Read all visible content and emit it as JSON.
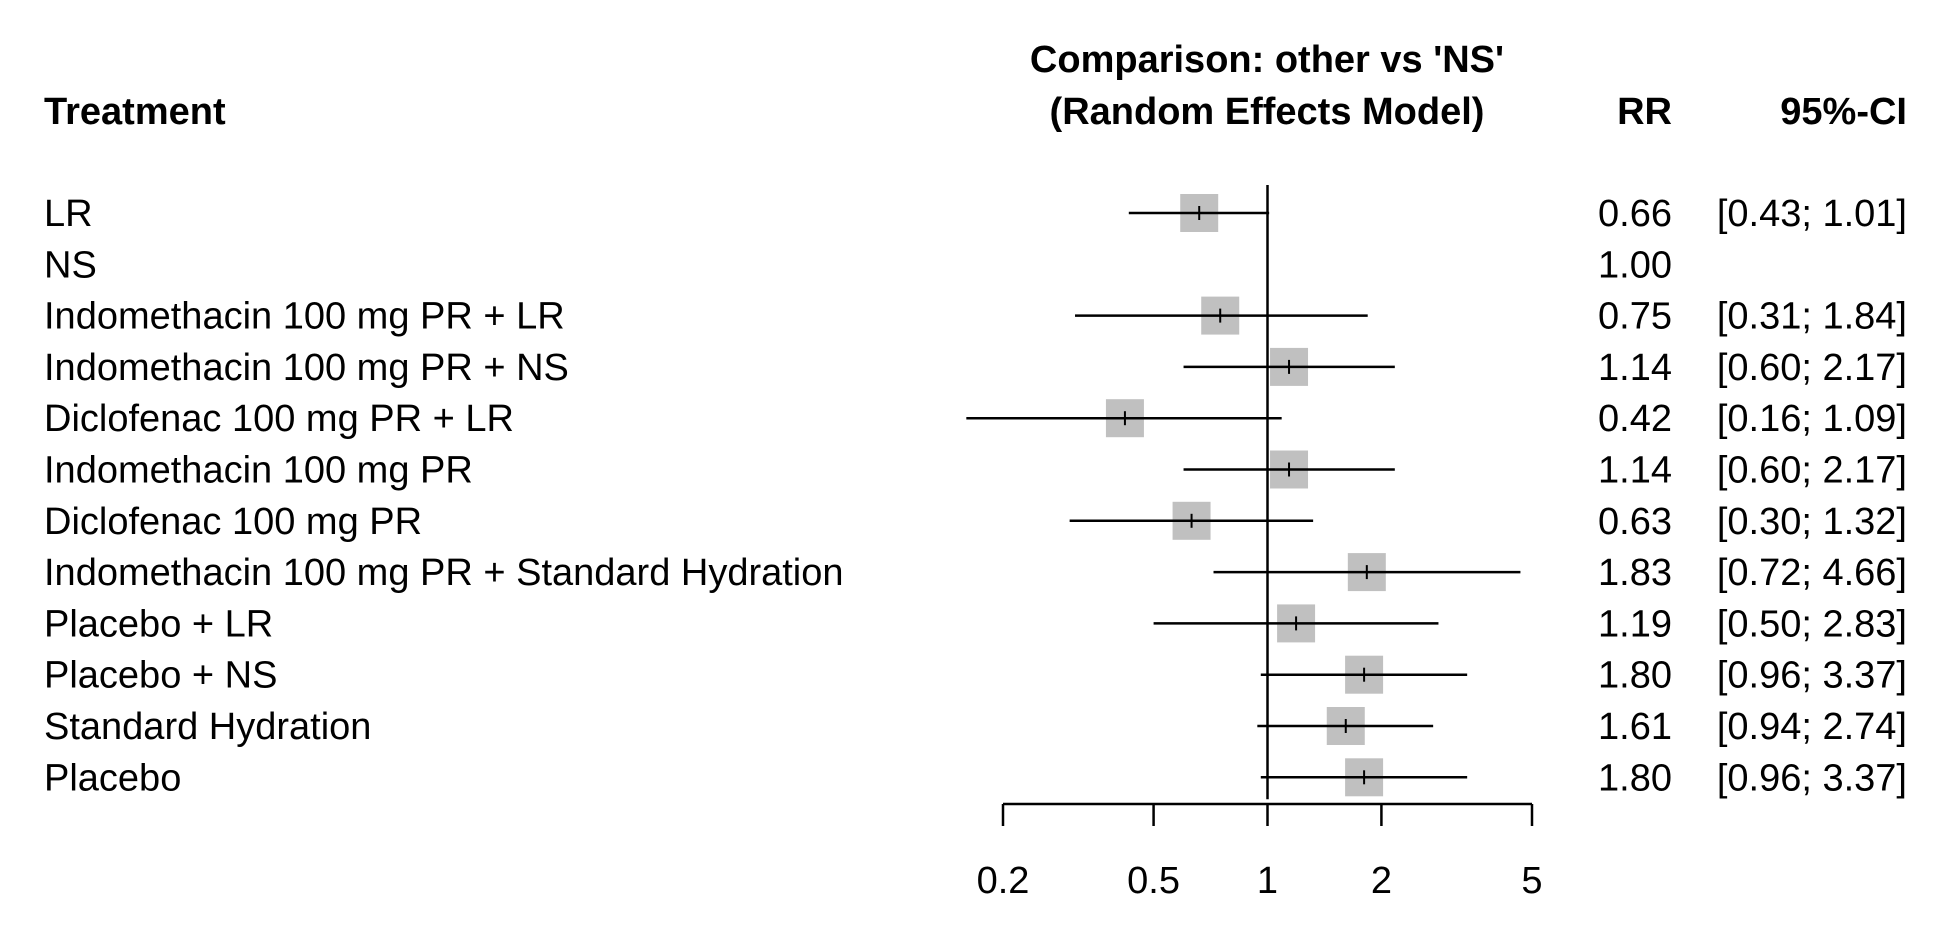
{
  "chart_data": {
    "type": "forest",
    "title_line1": "Comparison: other vs 'NS'",
    "title_line2": "(Random Effects Model)",
    "col_treatment": "Treatment",
    "col_rr": "RR",
    "col_ci": "95%-CI",
    "scale": "log",
    "xlim": [
      0.2,
      5
    ],
    "xticks": [
      0.2,
      0.5,
      1,
      2,
      5
    ],
    "xtick_labels": [
      "0.2",
      "0.5",
      "1",
      "2",
      "5"
    ],
    "reference_line": 1,
    "rows": [
      {
        "treatment": "LR",
        "rr": 0.66,
        "lower": 0.43,
        "upper": 1.01,
        "rr_text": "0.66",
        "ci_text": "[0.43; 1.01]"
      },
      {
        "treatment": "NS",
        "rr": 1.0,
        "lower": null,
        "upper": null,
        "rr_text": "1.00",
        "ci_text": ""
      },
      {
        "treatment": "Indomethacin 100 mg PR + LR",
        "rr": 0.75,
        "lower": 0.31,
        "upper": 1.84,
        "rr_text": "0.75",
        "ci_text": "[0.31; 1.84]"
      },
      {
        "treatment": "Indomethacin 100 mg PR + NS",
        "rr": 1.14,
        "lower": 0.6,
        "upper": 2.17,
        "rr_text": "1.14",
        "ci_text": "[0.60; 2.17]"
      },
      {
        "treatment": "Diclofenac 100 mg PR + LR",
        "rr": 0.42,
        "lower": 0.16,
        "upper": 1.09,
        "rr_text": "0.42",
        "ci_text": "[0.16; 1.09]"
      },
      {
        "treatment": "Indomethacin 100 mg PR",
        "rr": 1.14,
        "lower": 0.6,
        "upper": 2.17,
        "rr_text": "1.14",
        "ci_text": "[0.60; 2.17]"
      },
      {
        "treatment": "Diclofenac 100 mg PR",
        "rr": 0.63,
        "lower": 0.3,
        "upper": 1.32,
        "rr_text": "0.63",
        "ci_text": "[0.30; 1.32]"
      },
      {
        "treatment": "Indomethacin 100 mg PR + Standard Hydration",
        "rr": 1.83,
        "lower": 0.72,
        "upper": 4.66,
        "rr_text": "1.83",
        "ci_text": "[0.72; 4.66]"
      },
      {
        "treatment": "Placebo + LR",
        "rr": 1.19,
        "lower": 0.5,
        "upper": 2.83,
        "rr_text": "1.19",
        "ci_text": "[0.50; 2.83]"
      },
      {
        "treatment": "Placebo + NS",
        "rr": 1.8,
        "lower": 0.96,
        "upper": 3.37,
        "rr_text": "1.80",
        "ci_text": "[0.96; 3.37]"
      },
      {
        "treatment": "Standard Hydration",
        "rr": 1.61,
        "lower": 0.94,
        "upper": 2.74,
        "rr_text": "1.61",
        "ci_text": "[0.94; 2.74]"
      },
      {
        "treatment": "Placebo",
        "rr": 1.8,
        "lower": 0.96,
        "upper": 3.37,
        "rr_text": "1.80",
        "ci_text": "[0.96; 3.37]"
      }
    ],
    "colors": {
      "box": "#c0c0c0",
      "line": "#000000"
    }
  }
}
